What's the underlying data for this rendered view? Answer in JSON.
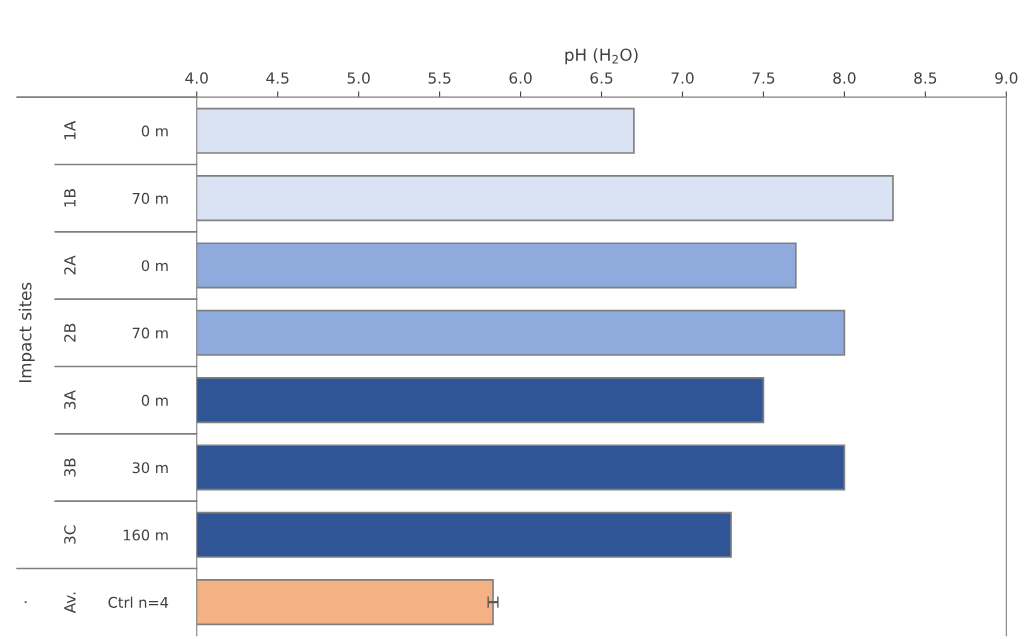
{
  "chart_data": {
    "type": "bar",
    "orientation": "horizontal",
    "xlabel": "pH (H$_{2}$O)",
    "ylabel": "Impact sites",
    "categories": [
      "0 m",
      "70 m",
      "0 m",
      "70 m",
      "0 m",
      "30 m",
      "160 m",
      "Ctrl n=4"
    ],
    "values": [
      6.7,
      8.3,
      7.7,
      8.0,
      7.5,
      8.0,
      7.3,
      5.83
    ],
    "colors": [
      "#dae3f3",
      "#dae3f3",
      "#8faadc",
      "#8faadc",
      "#2f5597",
      "#2f5597",
      "#2f5597",
      "#f4b183"
    ],
    "errors": [
      null,
      null,
      null,
      null,
      null,
      null,
      null,
      0.03
    ],
    "xlim": [
      4.0,
      9.0
    ],
    "xticks": [
      {
        "value": 4,
        "label": "4.0"
      },
      4.5,
      {
        "value": 5,
        "label": "5.0"
      },
      5.5,
      {
        "value": 6,
        "label": "6.0"
      },
      6.5,
      {
        "value": 7,
        "label": "7.0"
      },
      7.5,
      {
        "value": 8,
        "label": "8.0"
      },
      8.5,
      {
        "value": 9,
        "label": "9.0"
      }
    ],
    "annotations": [
      "1A",
      "1B",
      "2A",
      "2B",
      "3A",
      "3B",
      "3C",
      "Av.",
      "·"
    ],
    "grid": false,
    "legend": false
  }
}
